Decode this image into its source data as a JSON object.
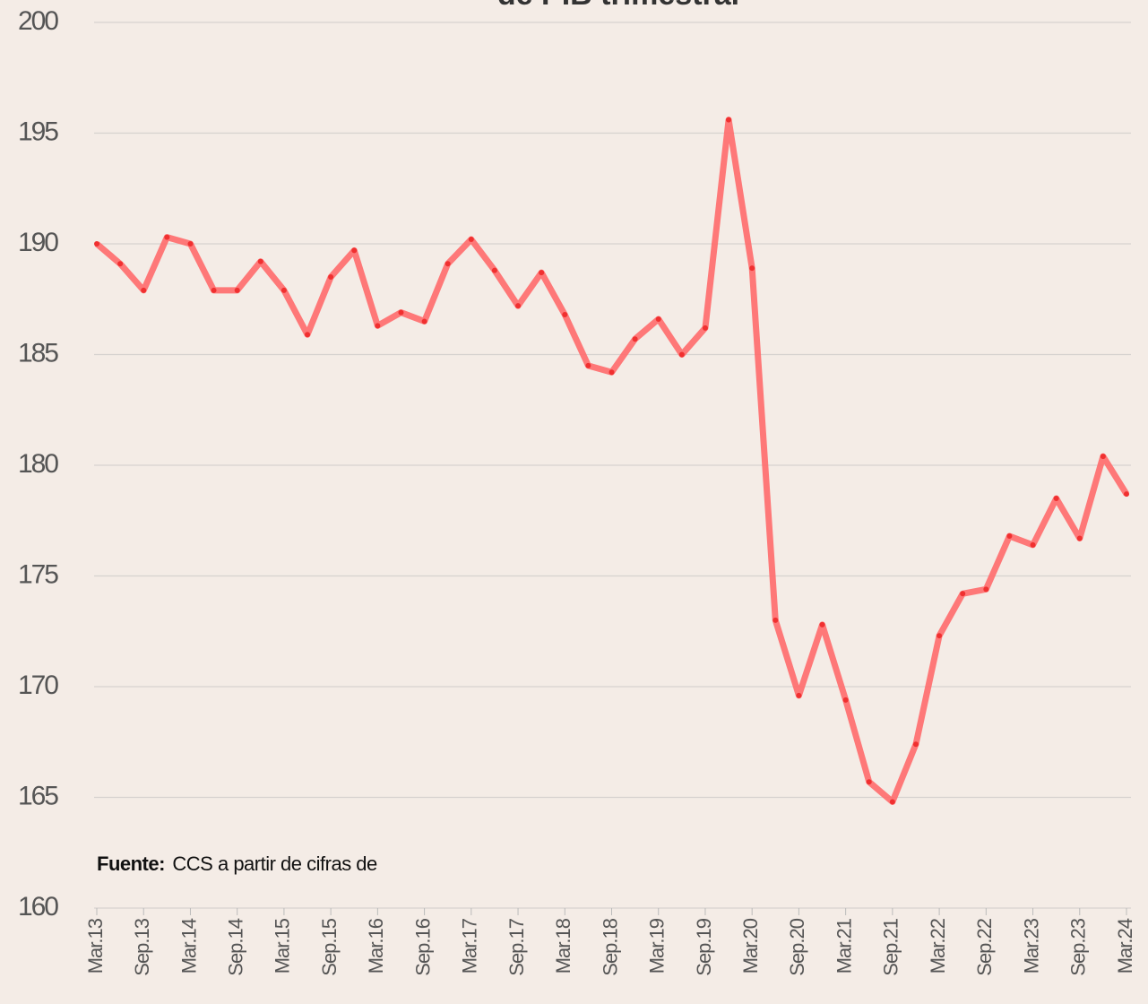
{
  "chart_data": {
    "type": "line",
    "title": "de PIB trimestral",
    "categories": [
      "Mar.13",
      null,
      "Sep.13",
      null,
      "Mar.14",
      null,
      "Sep.14",
      null,
      "Mar.15",
      null,
      "Sep.15",
      null,
      "Mar.16",
      null,
      "Sep.16",
      null,
      "Mar.17",
      null,
      "Sep.17",
      null,
      "Mar.18",
      null,
      "Sep.18",
      null,
      "Mar.19",
      null,
      "Sep.19",
      null,
      "Mar.20",
      null,
      "Sep.20",
      null,
      "Mar.21",
      null,
      "Sep.21",
      null,
      "Mar.22",
      null,
      "Sep.22",
      null,
      "Mar.23",
      null,
      "Sep.23",
      null,
      "Mar.24"
    ],
    "series": [
      {
        "color": "#ff6b6b",
        "marker_color": "#f03030",
        "values": [
          190.0,
          189.1,
          187.9,
          190.3,
          190.0,
          187.9,
          187.9,
          189.2,
          187.9,
          185.9,
          188.5,
          189.7,
          186.3,
          186.9,
          186.5,
          189.1,
          190.2,
          188.8,
          187.2,
          188.7,
          186.8,
          184.5,
          184.2,
          185.7,
          186.6,
          185.0,
          186.2,
          195.6,
          188.9,
          173.0,
          169.6,
          172.8,
          169.4,
          165.7,
          164.8,
          167.4,
          172.3,
          174.2,
          174.4,
          176.8,
          176.4,
          178.5,
          176.7,
          180.4,
          178.7
        ]
      }
    ],
    "ylim": [
      160,
      200
    ],
    "yticks": [
      160,
      165,
      170,
      175,
      180,
      185,
      190,
      195,
      200
    ],
    "grid": true,
    "source": {
      "label": "Fuente:",
      "text": "CCS a partir de cifras de"
    }
  }
}
